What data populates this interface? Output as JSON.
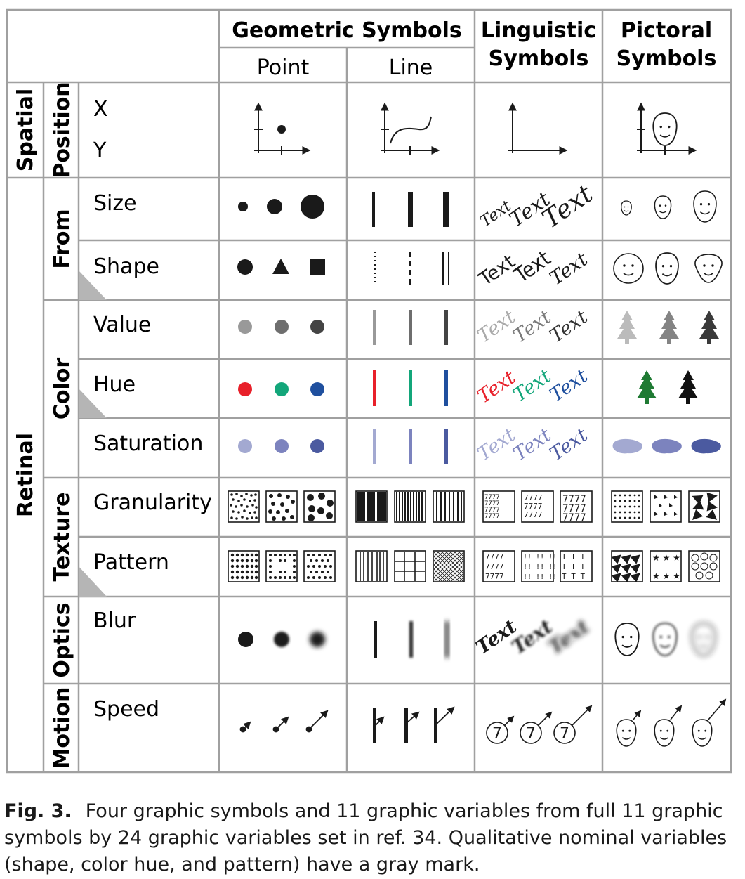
{
  "columns": {
    "geometric": "Geometric Symbols",
    "point": "Point",
    "line": "Line",
    "linguistic_1": "Linguistic",
    "linguistic_2": "Symbols",
    "pictoral_1": "Pictoral",
    "pictoral_2": "Symbols"
  },
  "groups": {
    "spatial": "Spatial",
    "retinal": "Retinal",
    "position": "Position",
    "form": "From",
    "color": "Color",
    "texture": "Texture",
    "optics": "Optics",
    "motion": "Motion"
  },
  "variables": {
    "x": "X",
    "y": "Y",
    "size": "Size",
    "shape": "Shape",
    "value": "Value",
    "hue": "Hue",
    "saturation": "Saturation",
    "granularity": "Granularity",
    "pattern": "Pattern",
    "blur": "Blur",
    "speed": "Speed"
  },
  "sample_text": "Text",
  "sample_digit": "7",
  "texture_glyphs": {
    "digits": "7777",
    "bangs": "!! !! !!",
    "tees": "T T T"
  },
  "colors": {
    "grid_line": "#a0a0a0",
    "ink": "#1a1a1a",
    "value_light": "#999999",
    "value_mid": "#6e6e6e",
    "value_dark": "#444444",
    "hue_red": "#e8202a",
    "hue_green": "#13a67a",
    "hue_blue": "#1f4f9e",
    "tree_green": "#1f7a33",
    "sat_light": "#a3a9d1",
    "sat_mid": "#7c83be",
    "sat_dark": "#4b5aa0",
    "nominal_mark": "#b5b5b5"
  },
  "caption": {
    "label": "Fig. 3.",
    "text": "Four graphic symbols and 11 graphic variables from full 11 graphic symbols by 24 graphic variables set in ref. 34. Qualitative nominal variables (shape, color hue, and pattern) have a gray mark."
  }
}
